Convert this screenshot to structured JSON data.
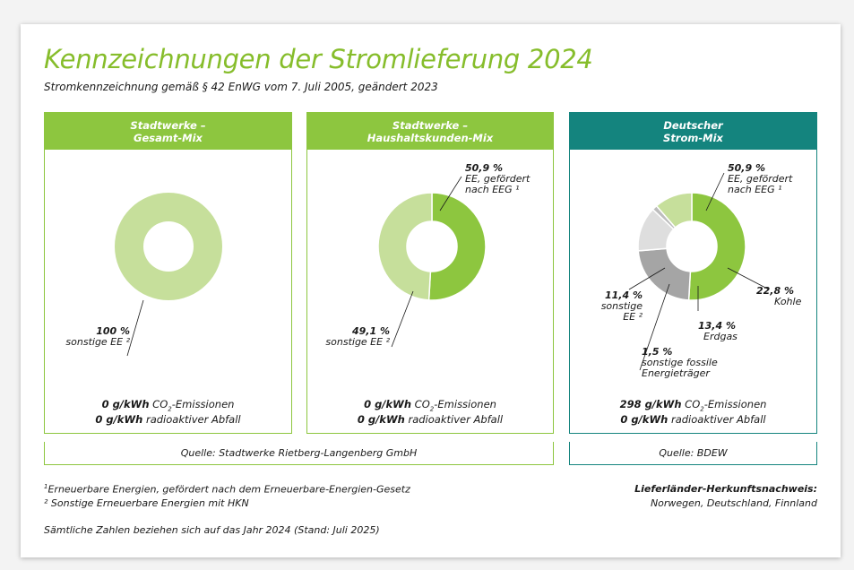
{
  "title": "Kennzeichnungen der Stromlieferung 2024",
  "subtitle": "Stromkennzeichnung gemäß § 42 EnWG vom 7. Juli 2005, geändert 2023",
  "colors": {
    "green": "#8dc63f",
    "ee_funded": "#8dc63f",
    "ee_other": "#c6df9b",
    "kohle": "#a5a5a5",
    "erdgas": "#dedede",
    "sonstige_fossile": "#bdbdbd",
    "teal": "#14847e",
    "title_green": "#86bd2b"
  },
  "panels": [
    {
      "header_line1": "Stadtwerke –",
      "header_line2": "Gesamt-Mix",
      "labels": [
        {
          "pct": "100 %",
          "lines": [
            "sonstige EE ²"
          ]
        }
      ],
      "co2_value": "0 g/kWh",
      "co2_text": " CO",
      "co2_sub": "2",
      "co2_suffix": "-Emissionen",
      "waste_value": "0 g/kWh",
      "waste_text": " radioaktiver Abfall"
    },
    {
      "header_line1": "Stadtwerke –",
      "header_line2": "Haushaltskunden-Mix",
      "labels": [
        {
          "pct": "50,9 %",
          "lines": [
            "EE, gefördert",
            "nach EEG ¹"
          ]
        },
        {
          "pct": "49,1 %",
          "lines": [
            "sonstige EE ²"
          ]
        }
      ],
      "co2_value": "0 g/kWh",
      "co2_text": " CO",
      "co2_sub": "2",
      "co2_suffix": "-Emissionen",
      "waste_value": "0 g/kWh",
      "waste_text": " radioaktiver Abfall"
    },
    {
      "header_line1": "Deutscher",
      "header_line2": "Strom-Mix",
      "labels": [
        {
          "pct": "50,9 %",
          "lines": [
            "EE, gefördert",
            "nach EEG ¹"
          ]
        },
        {
          "pct": "22,8 %",
          "lines": [
            "Kohle"
          ]
        },
        {
          "pct": "13,4 %",
          "lines": [
            "Erdgas"
          ]
        },
        {
          "pct": "1,5 %",
          "lines": [
            "sonstige fossile",
            "Energieträger"
          ]
        },
        {
          "pct": "11,4 %",
          "lines": [
            "sonstige",
            "EE ²"
          ]
        }
      ],
      "co2_value": "298 g/kWh",
      "co2_text": " CO",
      "co2_sub": "2",
      "co2_suffix": "-Emissionen",
      "waste_value": "0 g/kWh",
      "waste_text": " radioaktiver Abfall"
    }
  ],
  "source_left": "Quelle: Stadtwerke Rietberg-Langenberg GmbH",
  "source_right": "Quelle: BDEW",
  "footnote1_mark": "1",
  "footnote1": "Erneuerbare Energien, gefördert nach dem Erneuerbare-Energien-Gesetz",
  "footnote2": "² Sonstige Erneuerbare Energien mit HKN",
  "note": "Sämtliche Zahlen beziehen sich auf das Jahr 2024 (Stand: Juli 2025)",
  "origin_title": "Lieferländer-Herkunftsnachweis:",
  "origin_countries": "Norwegen, Deutschland, Finnland",
  "chart_data": [
    {
      "type": "pie",
      "title": "Stadtwerke – Gesamt-Mix",
      "categories": [
        "sonstige EE ²"
      ],
      "values": [
        100
      ],
      "colors": [
        "#c6df9b"
      ]
    },
    {
      "type": "pie",
      "title": "Stadtwerke – Haushaltskunden-Mix",
      "categories": [
        "EE, gefördert nach EEG ¹",
        "sonstige EE ²"
      ],
      "values": [
        50.9,
        49.1
      ],
      "colors": [
        "#8dc63f",
        "#c6df9b"
      ]
    },
    {
      "type": "pie",
      "title": "Deutscher Strom-Mix",
      "categories": [
        "EE, gefördert nach EEG ¹",
        "Kohle",
        "Erdgas",
        "sonstige fossile Energieträger",
        "sonstige EE ²"
      ],
      "values": [
        50.9,
        22.8,
        13.4,
        1.5,
        11.4
      ],
      "colors": [
        "#8dc63f",
        "#a5a5a5",
        "#dedede",
        "#bdbdbd",
        "#c6df9b"
      ]
    }
  ]
}
